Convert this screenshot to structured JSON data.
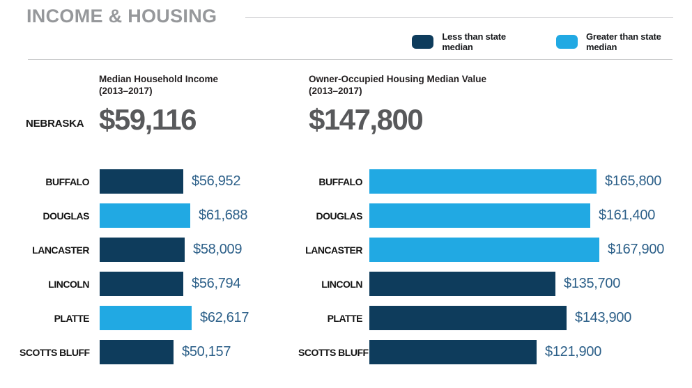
{
  "title": "INCOME & HOUSING",
  "legend": {
    "less": {
      "label": "Less than state median",
      "color": "#0e3c5c"
    },
    "greater": {
      "label": "Greater than state median",
      "color": "#21a9e3"
    }
  },
  "state": {
    "name": "NEBRASKA",
    "income": {
      "header_line1": "Median Household Income",
      "header_line2": "(2013–2017)",
      "value": "$59,116"
    },
    "housing": {
      "header_line1": "Owner-Occupied Housing Median Value",
      "header_line2": "(2013–2017)",
      "value": "$147,800"
    }
  },
  "chart_data": [
    {
      "type": "bar",
      "orientation": "horizontal",
      "title": "Median Household Income (2013–2017)",
      "state_reference": {
        "name": "NEBRASKA",
        "value": 59116,
        "label": "$59,116"
      },
      "categories": [
        "BUFFALO",
        "DOUGLAS",
        "LANCASTER",
        "LINCOLN",
        "PLATTE",
        "SCOTTS BLUFF"
      ],
      "values": [
        56952,
        61688,
        58009,
        56794,
        62617,
        50157
      ],
      "value_labels": [
        "$56,952",
        "$61,688",
        "$58,009",
        "$56,794",
        "$62,617",
        "$50,157"
      ],
      "series_key": [
        "less",
        "greater",
        "less",
        "less",
        "greater",
        "less"
      ],
      "xlim": [
        0,
        63500
      ],
      "grid": false,
      "legend_position": "top-right"
    },
    {
      "type": "bar",
      "orientation": "horizontal",
      "title": "Owner-Occupied Housing Median Value (2013–2017)",
      "state_reference": {
        "name": "NEBRASKA",
        "value": 147800,
        "label": "$147,800"
      },
      "categories": [
        "BUFFALO",
        "DOUGLAS",
        "LANCASTER",
        "LINCOLN",
        "PLATTE",
        "SCOTTS BLUFF"
      ],
      "values": [
        165800,
        161400,
        167900,
        135700,
        143900,
        121900
      ],
      "value_labels": [
        "$165,800",
        "$161,400",
        "$167,900",
        "$135,700",
        "$143,900",
        "$121,900"
      ],
      "series_key": [
        "greater",
        "greater",
        "greater",
        "less",
        "less",
        "less"
      ],
      "xlim": [
        0,
        172000
      ],
      "grid": false,
      "legend_position": "top-right"
    }
  ]
}
